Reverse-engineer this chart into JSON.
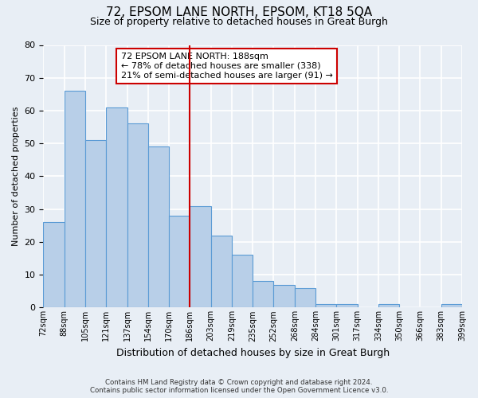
{
  "title": "72, EPSOM LANE NORTH, EPSOM, KT18 5QA",
  "subtitle": "Size of property relative to detached houses in Great Burgh",
  "xlabel": "Distribution of detached houses by size in Great Burgh",
  "ylabel": "Number of detached properties",
  "footer_line1": "Contains HM Land Registry data © Crown copyright and database right 2024.",
  "footer_line2": "Contains public sector information licensed under the Open Government Licence v3.0.",
  "bin_labels": [
    "72sqm",
    "88sqm",
    "105sqm",
    "121sqm",
    "137sqm",
    "154sqm",
    "170sqm",
    "186sqm",
    "203sqm",
    "219sqm",
    "235sqm",
    "252sqm",
    "268sqm",
    "284sqm",
    "301sqm",
    "317sqm",
    "334sqm",
    "350sqm",
    "366sqm",
    "383sqm",
    "399sqm"
  ],
  "bar_values": [
    26,
    66,
    51,
    61,
    56,
    49,
    28,
    31,
    22,
    16,
    8,
    7,
    6,
    1,
    1,
    0,
    1,
    0,
    0,
    1
  ],
  "bar_color": "#b8cfe8",
  "bar_edge_color": "#5b9bd5",
  "annotation_text_line1": "72 EPSOM LANE NORTH: 188sqm",
  "annotation_text_line2": "← 78% of detached houses are smaller (338)",
  "annotation_text_line3": "21% of semi-detached houses are larger (91) →",
  "annotation_box_edge": "#cc0000",
  "vline_x": 7,
  "ylim": [
    0,
    80
  ],
  "yticks": [
    0,
    10,
    20,
    30,
    40,
    50,
    60,
    70,
    80
  ],
  "bg_color": "#e8eef5",
  "grid_color": "#ffffff"
}
